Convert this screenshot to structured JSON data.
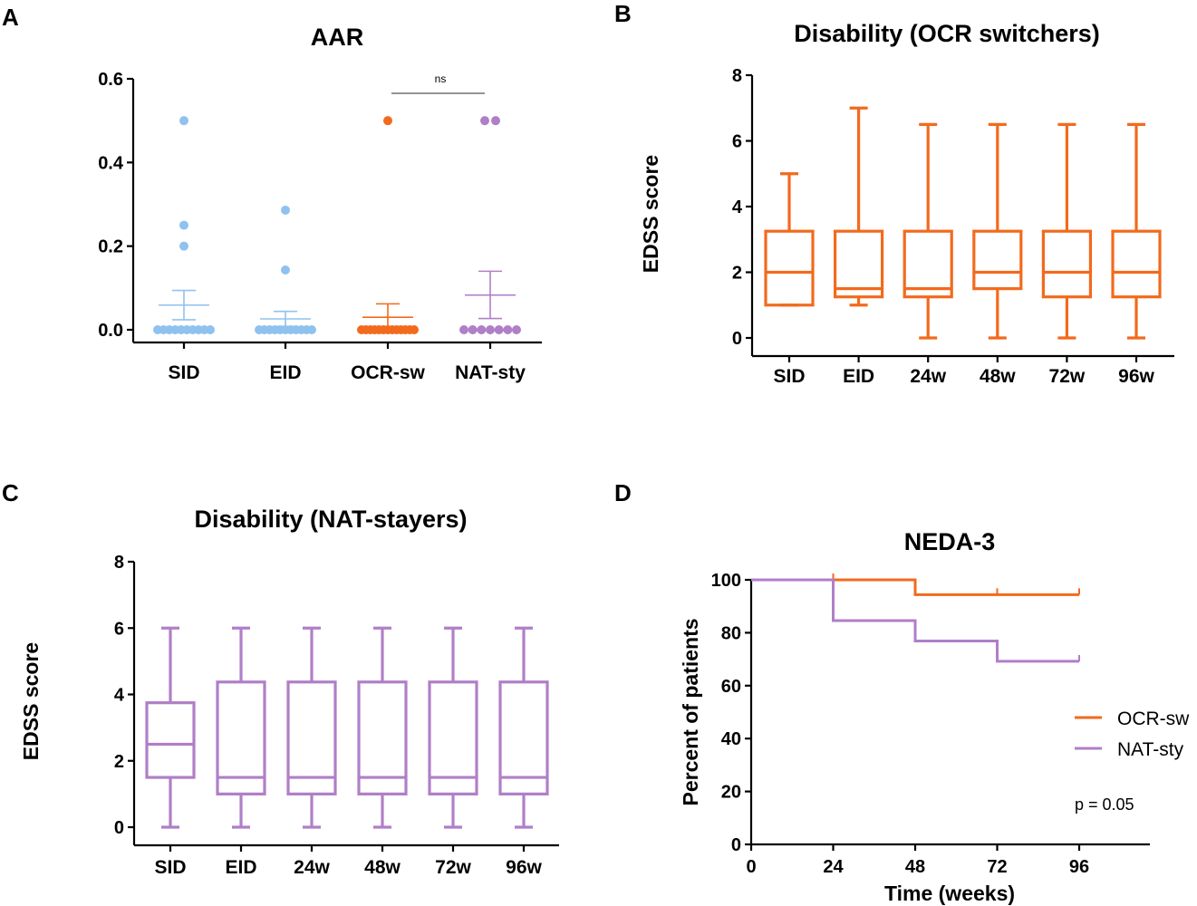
{
  "figure": {
    "colors": {
      "blue": "#8fc2ee",
      "orange": "#f26a1d",
      "purple": "#b07fc7",
      "black": "#000000"
    }
  },
  "chart_data": [
    {
      "id": "A",
      "type": "scatter",
      "panel_label": "A",
      "title": "AAR",
      "xlabel": "",
      "ylabel": "",
      "ylim": [
        0,
        0.6
      ],
      "yticks": [
        0.0,
        0.2,
        0.4,
        0.6
      ],
      "ytick_labels": [
        "0.0",
        "0.2",
        "0.4",
        "0.6"
      ],
      "categories": [
        "SID",
        "EID",
        "OCR-sw",
        "NAT-sty"
      ],
      "series": [
        {
          "name": "SID",
          "color": "#8fc2ee",
          "mean": 0.059,
          "sem_high": 0.094,
          "sem_low": 0.024,
          "points": [
            0.5,
            0.25,
            0.2,
            0,
            0,
            0,
            0,
            0,
            0,
            0,
            0,
            0,
            0
          ]
        },
        {
          "name": "EID",
          "color": "#8fc2ee",
          "mean": 0.026,
          "sem_high": 0.044,
          "sem_low": 0.008,
          "points": [
            0.286,
            0.143,
            0,
            0,
            0,
            0,
            0,
            0,
            0,
            0,
            0,
            0,
            0
          ]
        },
        {
          "name": "OCR-sw",
          "color": "#f26a1d",
          "mean": 0.03,
          "sem_high": 0.062,
          "sem_low": 0.0,
          "points": [
            0.5,
            0,
            0,
            0,
            0,
            0,
            0,
            0,
            0,
            0,
            0,
            0,
            0,
            0
          ]
        },
        {
          "name": "NAT-sty",
          "color": "#b07fc7",
          "mean": 0.083,
          "sem_high": 0.14,
          "sem_low": 0.027,
          "points": [
            0.5,
            0.5,
            0,
            0,
            0,
            0,
            0,
            0,
            0
          ]
        }
      ],
      "annotations": [
        {
          "text": "ns",
          "between": [
            "OCR-sw",
            "NAT-sty"
          ]
        }
      ]
    },
    {
      "id": "B",
      "type": "box",
      "panel_label": "B",
      "title": "Disability (OCR switchers)",
      "xlabel": "",
      "ylabel": "EDSS score",
      "ylim": [
        0,
        8
      ],
      "yticks": [
        0,
        2,
        4,
        6,
        8
      ],
      "color": "#f26a1d",
      "categories": [
        "SID",
        "EID",
        "24w",
        "48w",
        "72w",
        "96w"
      ],
      "boxes": [
        {
          "min": 1,
          "q1": 1,
          "median": 2,
          "q3": 3.25,
          "max": 5
        },
        {
          "min": 1,
          "q1": 1.25,
          "median": 1.5,
          "q3": 3.25,
          "max": 7
        },
        {
          "min": 0,
          "q1": 1.25,
          "median": 1.5,
          "q3": 3.25,
          "max": 6.5
        },
        {
          "min": 0,
          "q1": 1.5,
          "median": 2,
          "q3": 3.25,
          "max": 6.5
        },
        {
          "min": 0,
          "q1": 1.25,
          "median": 2,
          "q3": 3.25,
          "max": 6.5
        },
        {
          "min": 0,
          "q1": 1.25,
          "median": 2,
          "q3": 3.25,
          "max": 6.5
        }
      ]
    },
    {
      "id": "C",
      "type": "box",
      "panel_label": "C",
      "title": "Disability (NAT-stayers)",
      "xlabel": "",
      "ylabel": "EDSS score",
      "ylim": [
        0,
        8
      ],
      "yticks": [
        0,
        2,
        4,
        6,
        8
      ],
      "color": "#b07fc7",
      "categories": [
        "SID",
        "EID",
        "24w",
        "48w",
        "72w",
        "96w"
      ],
      "boxes": [
        {
          "min": 0,
          "q1": 1.5,
          "median": 2.5,
          "q3": 3.75,
          "max": 6
        },
        {
          "min": 0,
          "q1": 1,
          "median": 1.5,
          "q3": 4.375,
          "max": 6
        },
        {
          "min": 0,
          "q1": 1,
          "median": 1.5,
          "q3": 4.375,
          "max": 6
        },
        {
          "min": 0,
          "q1": 1,
          "median": 1.5,
          "q3": 4.375,
          "max": 6
        },
        {
          "min": 0,
          "q1": 1,
          "median": 1.5,
          "q3": 4.375,
          "max": 6
        },
        {
          "min": 0,
          "q1": 1,
          "median": 1.5,
          "q3": 4.375,
          "max": 6
        }
      ]
    },
    {
      "id": "D",
      "type": "line",
      "panel_label": "D",
      "title": "NEDA-3",
      "xlabel": "Time (weeks)",
      "ylabel": "Percent of patients",
      "xlim": [
        0,
        120
      ],
      "ylim": [
        0,
        100
      ],
      "xticks": [
        0,
        24,
        48,
        72,
        96
      ],
      "yticks": [
        0,
        20,
        40,
        60,
        80,
        100
      ],
      "series": [
        {
          "name": "OCR-sw",
          "color": "#f26a1d",
          "steps": [
            [
              0,
              100
            ],
            [
              48,
              100
            ],
            [
              48,
              94.4
            ],
            [
              96,
              94.4
            ]
          ],
          "censor": [
            [
              24,
              100
            ],
            [
              72,
              94.4
            ],
            [
              96,
              94.4
            ]
          ]
        },
        {
          "name": "NAT-sty",
          "color": "#b07fc7",
          "steps": [
            [
              0,
              100
            ],
            [
              24,
              100
            ],
            [
              24,
              84.6
            ],
            [
              48,
              84.6
            ],
            [
              48,
              76.9
            ],
            [
              72,
              76.9
            ],
            [
              72,
              69.2
            ],
            [
              96,
              69.2
            ]
          ],
          "censor": [
            [
              96,
              69.2
            ]
          ]
        }
      ],
      "legend": [
        "OCR-sw",
        "NAT-sty"
      ],
      "annotation": "p = 0.05"
    }
  ]
}
